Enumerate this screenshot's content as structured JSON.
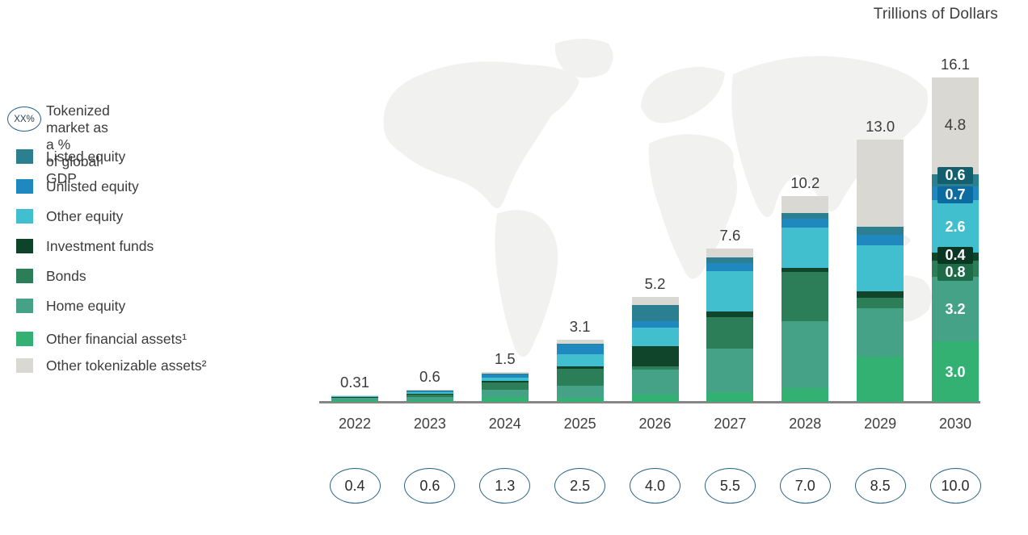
{
  "title": "Trillions of Dollars",
  "legend": {
    "gdp_badge": "XX%",
    "gdp_label_line1": "Tokenized market as a %",
    "gdp_label_line2": "of global GDP",
    "items": [
      {
        "name": "listed-equity",
        "label": "Listed equity",
        "color": "#2b7f90"
      },
      {
        "name": "unlisted-equity",
        "label": "Unlisted equity",
        "color": "#1f88bf"
      },
      {
        "name": "other-equity",
        "label": "Other equity",
        "color": "#41bfce"
      },
      {
        "name": "investment-funds",
        "label": "Investment funds",
        "color": "#0d4328"
      },
      {
        "name": "bonds",
        "label": "Bonds",
        "color": "#2b7e57"
      },
      {
        "name": "home-equity",
        "label": "Home equity",
        "color": "#45a287"
      },
      {
        "name": "other-financial-assets",
        "label": "Other financial assets¹",
        "color": "#32b173"
      },
      {
        "name": "other-tokenizable-assets",
        "label": "Other tokenizable assets²",
        "color": "#d9d8d2"
      }
    ]
  },
  "chart_data": {
    "type": "bar",
    "stacked": true,
    "title": "Trillions of Dollars",
    "unit": "trillions of US dollars",
    "categories": [
      "2022",
      "2023",
      "2024",
      "2025",
      "2026",
      "2027",
      "2028",
      "2029",
      "2030"
    ],
    "totals": [
      0.31,
      0.6,
      1.5,
      3.1,
      5.2,
      7.6,
      10.2,
      13.0,
      16.1
    ],
    "total_labels": [
      "0.31",
      "0.6",
      "1.5",
      "3.1",
      "5.2",
      "7.6",
      "10.2",
      "13.0",
      "16.1"
    ],
    "gdp_percent_labels": [
      "0.4",
      "0.6",
      "1.3",
      "2.5",
      "4.0",
      "5.5",
      "7.0",
      "8.5",
      "10.0"
    ],
    "gdp_percent_caption": "Tokenized market as a % of global GDP",
    "series": [
      {
        "name": "other_financial_assets",
        "label": "Other financial assets¹",
        "color": "#32b173",
        "values": [
          0.07,
          0.1,
          0.25,
          0.2,
          0.35,
          0.5,
          0.7,
          2.25,
          3.0
        ],
        "label_2030": "3.0"
      },
      {
        "name": "home_equity",
        "label": "Home equity",
        "color": "#45a287",
        "values": [
          0.12,
          0.15,
          0.37,
          0.6,
          1.25,
          2.15,
          3.3,
          2.4,
          3.2
        ],
        "label_2030": "3.2"
      },
      {
        "name": "bonds",
        "label": "Bonds",
        "color": "#2b7e57",
        "chip_color": "#1e6b48",
        "values": [
          0.05,
          0.12,
          0.35,
          0.85,
          0.15,
          1.55,
          2.45,
          0.5,
          0.8
        ],
        "label_2030": "0.8"
      },
      {
        "name": "investment_funds",
        "label": "Investment funds",
        "color": "#11452b",
        "chip_color": "#0a3721",
        "values": [
          0.02,
          0.05,
          0.08,
          0.1,
          1.0,
          0.3,
          0.2,
          0.35,
          0.4
        ],
        "label_2030": "0.4"
      },
      {
        "name": "other_equity",
        "label": "Other equity",
        "color": "#41bfce",
        "values": [
          0.03,
          0.08,
          0.17,
          0.6,
          0.95,
          2.0,
          2.0,
          2.25,
          2.6
        ],
        "label_2030": "2.6"
      },
      {
        "name": "unlisted_equity",
        "label": "Unlisted equity",
        "color": "#1f88bf",
        "chip_color": "#0c6ba0",
        "values": [
          0.0,
          0.03,
          0.15,
          0.5,
          0.3,
          0.4,
          0.45,
          0.55,
          0.7
        ],
        "label_2030": "0.7"
      },
      {
        "name": "listed_equity",
        "label": "Listed equity",
        "color": "#2b7f90",
        "chip_color": "#135f6e",
        "values": [
          0.0,
          0.02,
          0.05,
          0.05,
          0.8,
          0.25,
          0.25,
          0.4,
          0.6
        ],
        "label_2030": "0.6"
      },
      {
        "name": "other_tokenizable_assets",
        "label": "Other tokenizable assets²",
        "color": "#d9d8d2",
        "values": [
          0.02,
          0.05,
          0.08,
          0.2,
          0.4,
          0.45,
          0.85,
          4.3,
          4.8
        ],
        "label_2030": "4.8",
        "label_dark": true
      }
    ],
    "ylim": [
      0,
      16.1
    ],
    "grid": false,
    "legend_position": "left"
  }
}
